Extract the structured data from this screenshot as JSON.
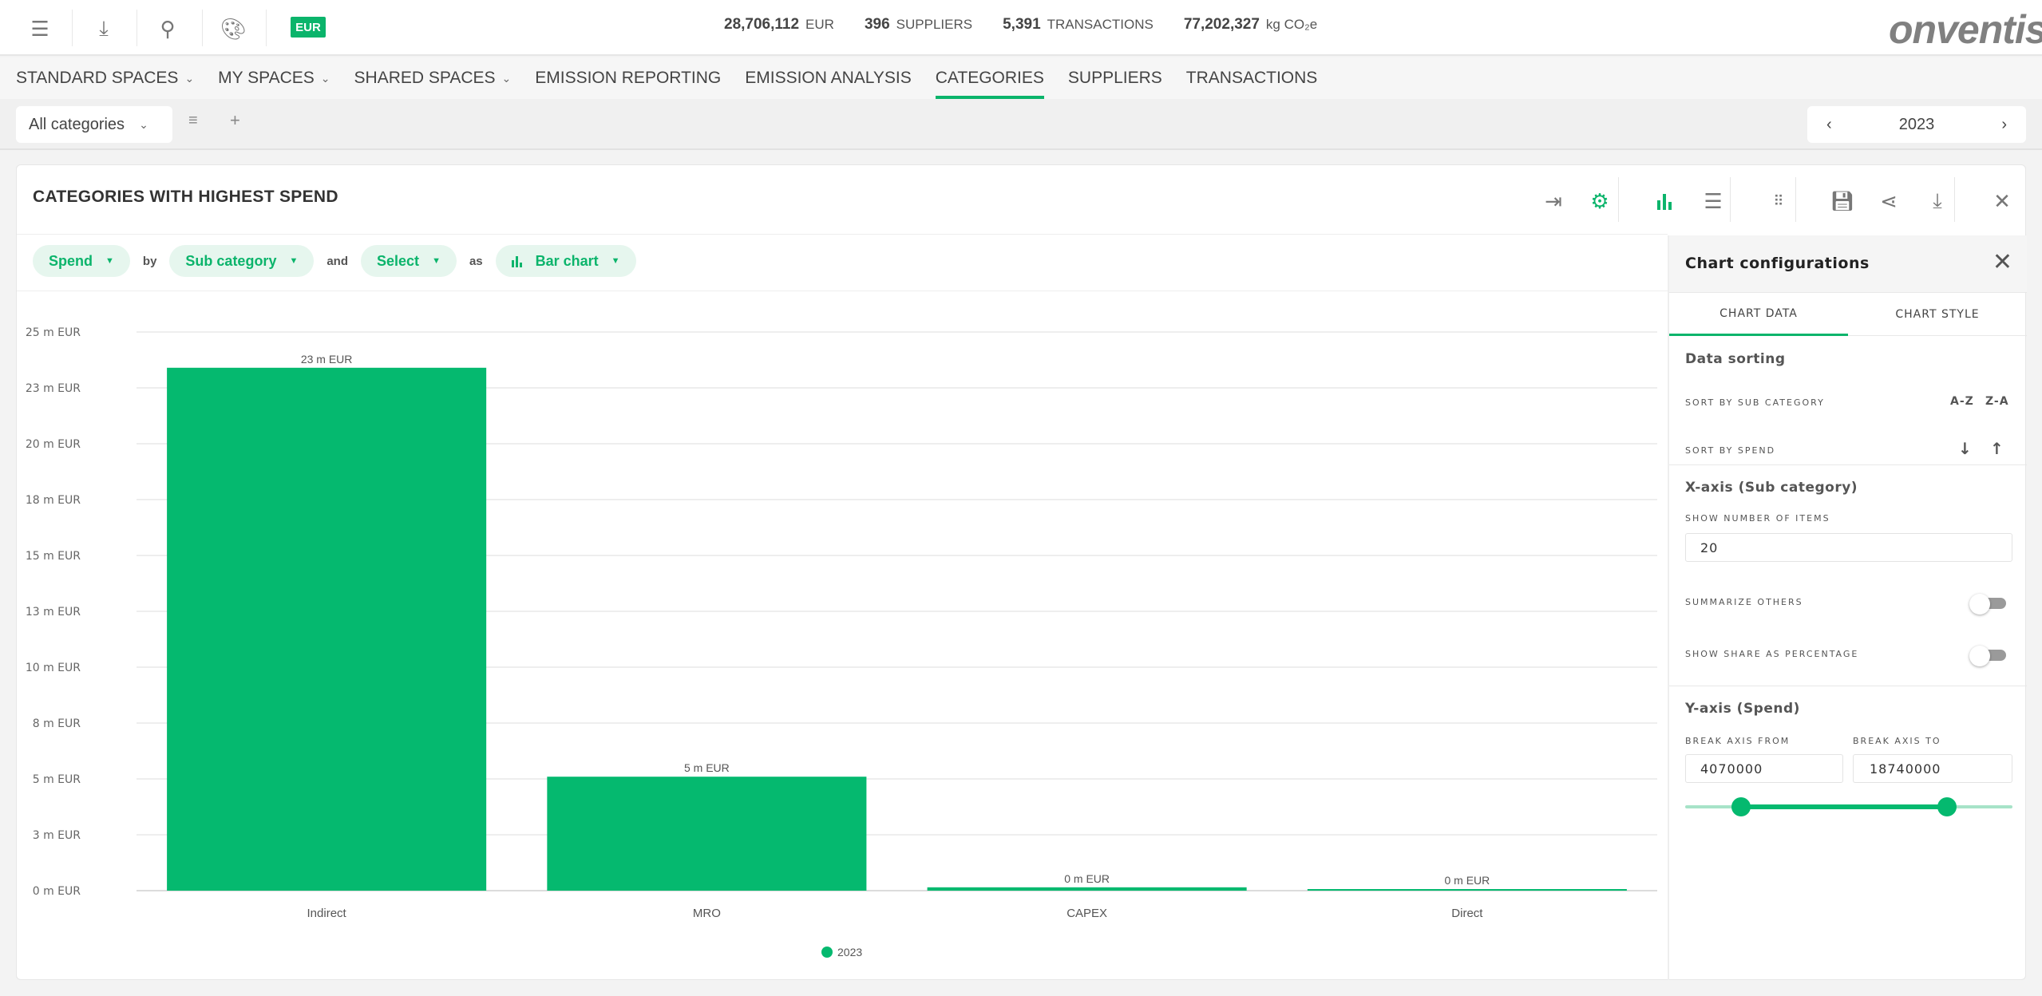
{
  "topbar": {
    "icons": [
      "menu-icon",
      "download-icon",
      "search-icon",
      "palette-icon"
    ],
    "currency_badge": "EUR",
    "stats": [
      {
        "value": "28,706,112",
        "unit": "EUR"
      },
      {
        "value": "396",
        "unit": "SUPPLIERS"
      },
      {
        "value": "5,391",
        "unit": "TRANSACTIONS"
      },
      {
        "value": "77,202,327",
        "unit": "kg CO₂e"
      }
    ],
    "logo": "onventis"
  },
  "nav": {
    "items": [
      {
        "label": "STANDARD SPACES",
        "dropdown": true
      },
      {
        "label": "MY SPACES",
        "dropdown": true
      },
      {
        "label": "SHARED SPACES",
        "dropdown": true
      },
      {
        "label": "EMISSION REPORTING"
      },
      {
        "label": "EMISSION ANALYSIS"
      },
      {
        "label": "CATEGORIES",
        "active": true
      },
      {
        "label": "SUPPLIERS"
      },
      {
        "label": "TRANSACTIONS"
      }
    ]
  },
  "filter": {
    "category_select": "All categories",
    "year": "2023"
  },
  "panel": {
    "title": "CATEGORIES WITH HIGHEST SPEND",
    "toolbar_icons": [
      "collapse-icon",
      "settings-icon",
      "bar-chart-icon",
      "list-icon",
      "grid-icon",
      "save-icon",
      "share-icon",
      "download-icon",
      "close-icon"
    ],
    "query": {
      "measure": "Spend",
      "by": "by",
      "dimension": "Sub category",
      "and": "and",
      "second": "Select",
      "as": "as",
      "chart_type": "Bar chart"
    }
  },
  "chart_data": {
    "type": "bar",
    "categories": [
      "Indirect",
      "MRO",
      "CAPEX",
      "Direct"
    ],
    "series": [
      {
        "name": "2023",
        "values": [
          23.4,
          5.1,
          0.15,
          0.05
        ],
        "labels": [
          "23 m EUR",
          "5 m EUR",
          "0 m EUR",
          "0 m EUR"
        ],
        "color": "#05b96f"
      }
    ],
    "yunit": "m EUR",
    "ylim": [
      0,
      25
    ],
    "yticks": [
      0,
      2.5,
      5,
      7.5,
      10,
      12.5,
      15,
      17.5,
      20,
      22.5,
      25
    ],
    "ytick_labels": [
      "0 m EUR",
      "3 m EUR",
      "5 m EUR",
      "8 m EUR",
      "10 m EUR",
      "13 m EUR",
      "15 m EUR",
      "18 m EUR",
      "20 m EUR",
      "23 m EUR",
      "25 m EUR"
    ],
    "grid": true,
    "legend": "bottom"
  },
  "config": {
    "title": "Chart configurations",
    "tabs": [
      "CHART DATA",
      "CHART STYLE"
    ],
    "sorting": {
      "heading": "Data sorting",
      "by_sub": "SORT BY SUB CATEGORY",
      "az": "A-Z",
      "za": "Z-A",
      "by_spend": "SORT BY SPEND",
      "desc": "↓",
      "asc": "↑"
    },
    "xaxis": {
      "heading": "X-axis (Sub category)",
      "items_label": "SHOW NUMBER OF ITEMS",
      "items_value": "20",
      "summarize": "SUMMARIZE OTHERS",
      "summarize_on": false,
      "share": "SHOW SHARE AS PERCENTAGE",
      "share_on": false
    },
    "yaxis": {
      "heading": "Y-axis (Spend)",
      "from_label": "BREAK AXIS FROM",
      "from_value": "4070000",
      "to_label": "BREAK AXIS TO",
      "to_value": "18740000",
      "slider_from": 0.17,
      "slider_to": 0.8
    }
  },
  "colors": {
    "accent": "#0bb46b",
    "bar": "#05b96f",
    "pill_bg": "#e6f6ee"
  }
}
